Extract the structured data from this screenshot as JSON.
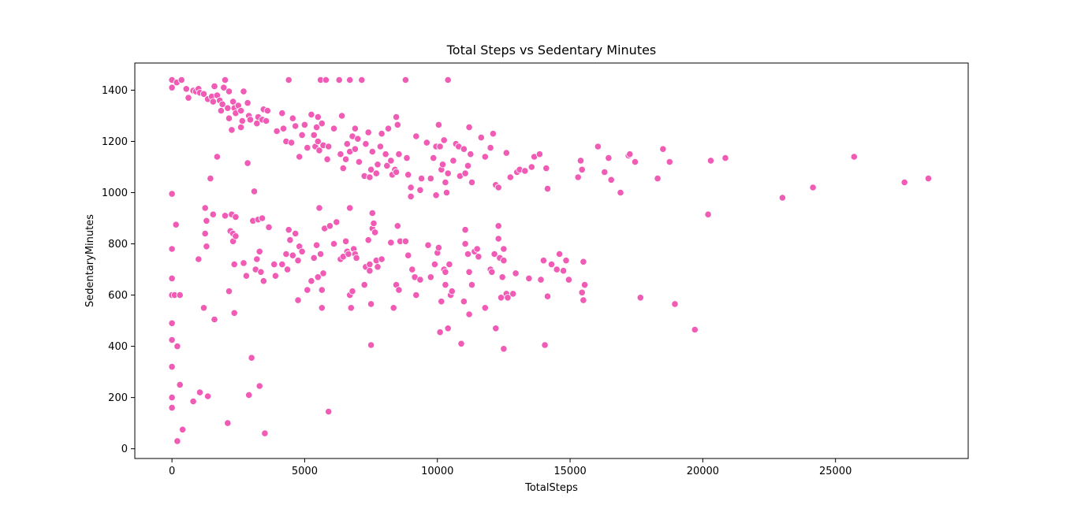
{
  "chart_data": {
    "type": "scatter",
    "title": "Total Steps vs Sedentary Minutes",
    "xlabel": "TotalSteps",
    "ylabel": "SedentaryMinutes",
    "xlim": [
      -1400,
      30000
    ],
    "ylim": [
      -38,
      1506
    ],
    "xticks": [
      0,
      5000,
      10000,
      15000,
      20000,
      25000
    ],
    "xtick_labels": [
      "0",
      "5000",
      "10000",
      "15000",
      "20000",
      "25000"
    ],
    "yticks": [
      0,
      200,
      400,
      600,
      800,
      1000,
      1200,
      1400
    ],
    "ytick_labels": [
      "0",
      "200",
      "400",
      "600",
      "800",
      "1000",
      "1200",
      "1400"
    ],
    "grid": false,
    "marker_color": "#f05bb5",
    "marker_edge": "#ffffff",
    "points": [
      [
        0,
        1440
      ],
      [
        0,
        1410
      ],
      [
        180,
        1430
      ],
      [
        360,
        1440
      ],
      [
        540,
        1405
      ],
      [
        620,
        1370
      ],
      [
        800,
        1398
      ],
      [
        900,
        1395
      ],
      [
        1000,
        1405
      ],
      [
        1050,
        1390
      ],
      [
        1200,
        1385
      ],
      [
        1350,
        1365
      ],
      [
        1500,
        1375
      ],
      [
        1550,
        1355
      ],
      [
        1600,
        1415
      ],
      [
        1700,
        1380
      ],
      [
        1800,
        1360
      ],
      [
        1850,
        1320
      ],
      [
        1900,
        1345
      ],
      [
        1950,
        1410
      ],
      [
        2000,
        1440
      ],
      [
        2100,
        1330
      ],
      [
        2150,
        1395
      ],
      [
        2150,
        1290
      ],
      [
        2250,
        1245
      ],
      [
        2300,
        1355
      ],
      [
        2350,
        1330
      ],
      [
        2400,
        1310
      ],
      [
        2500,
        1340
      ],
      [
        2600,
        1320
      ],
      [
        2600,
        1255
      ],
      [
        2650,
        1280
      ],
      [
        2700,
        1395
      ],
      [
        2850,
        1350
      ],
      [
        2900,
        1300
      ],
      [
        2950,
        1285
      ],
      [
        3200,
        1270
      ],
      [
        3250,
        1295
      ],
      [
        3400,
        1285
      ],
      [
        3450,
        1325
      ],
      [
        3550,
        1280
      ],
      [
        3600,
        1320
      ],
      [
        3950,
        1240
      ],
      [
        4150,
        1310
      ],
      [
        4200,
        1250
      ],
      [
        4300,
        1200
      ],
      [
        4400,
        1440
      ],
      [
        4500,
        1195
      ],
      [
        4550,
        1290
      ],
      [
        4650,
        1260
      ],
      [
        4800,
        1140
      ],
      [
        4900,
        1225
      ],
      [
        5000,
        1265
      ],
      [
        5100,
        1175
      ],
      [
        5250,
        1305
      ],
      [
        5350,
        1225
      ],
      [
        5400,
        1180
      ],
      [
        5450,
        1255
      ],
      [
        5500,
        1295
      ],
      [
        5500,
        1200
      ],
      [
        5550,
        1165
      ],
      [
        5600,
        1440
      ],
      [
        5650,
        1270
      ],
      [
        5700,
        1185
      ],
      [
        5800,
        1440
      ],
      [
        5850,
        1130
      ],
      [
        5900,
        1180
      ],
      [
        6100,
        1250
      ],
      [
        6300,
        1440
      ],
      [
        6350,
        1150
      ],
      [
        6400,
        1300
      ],
      [
        6450,
        1095
      ],
      [
        6550,
        1130
      ],
      [
        6600,
        1190
      ],
      [
        6700,
        1440
      ],
      [
        6700,
        1160
      ],
      [
        6800,
        1220
      ],
      [
        6900,
        1250
      ],
      [
        6900,
        1170
      ],
      [
        7000,
        1210
      ],
      [
        7050,
        1120
      ],
      [
        7150,
        1440
      ],
      [
        7250,
        1065
      ],
      [
        7300,
        1190
      ],
      [
        7400,
        1235
      ],
      [
        7450,
        1060
      ],
      [
        7500,
        1090
      ],
      [
        7550,
        1160
      ],
      [
        7700,
        1075
      ],
      [
        7750,
        1110
      ],
      [
        7850,
        1180
      ],
      [
        7900,
        1230
      ],
      [
        8050,
        1150
      ],
      [
        8100,
        1105
      ],
      [
        8150,
        1250
      ],
      [
        8250,
        1125
      ],
      [
        8300,
        1070
      ],
      [
        8400,
        1090
      ],
      [
        8450,
        1080
      ],
      [
        8450,
        1295
      ],
      [
        8500,
        1265
      ],
      [
        8550,
        1150
      ],
      [
        8800,
        1440
      ],
      [
        8850,
        1135
      ],
      [
        8900,
        1070
      ],
      [
        9000,
        1020
      ],
      [
        9000,
        985
      ],
      [
        9200,
        1220
      ],
      [
        9350,
        1010
      ],
      [
        9400,
        1055
      ],
      [
        9600,
        1195
      ],
      [
        9750,
        1055
      ],
      [
        9850,
        1135
      ],
      [
        9950,
        1180
      ],
      [
        9950,
        990
      ],
      [
        10050,
        1265
      ],
      [
        10100,
        1180
      ],
      [
        10150,
        1090
      ],
      [
        10200,
        1110
      ],
      [
        10250,
        1205
      ],
      [
        10300,
        1040
      ],
      [
        10350,
        1000
      ],
      [
        10400,
        1440
      ],
      [
        10400,
        1075
      ],
      [
        10600,
        1125
      ],
      [
        10700,
        1190
      ],
      [
        10800,
        1180
      ],
      [
        10850,
        1065
      ],
      [
        11000,
        1170
      ],
      [
        11050,
        1075
      ],
      [
        11150,
        1105
      ],
      [
        11200,
        1255
      ],
      [
        11250,
        1150
      ],
      [
        11300,
        1040
      ],
      [
        11650,
        1215
      ],
      [
        11800,
        1140
      ],
      [
        12000,
        1175
      ],
      [
        12100,
        1230
      ],
      [
        12200,
        1030
      ],
      [
        12300,
        1020
      ],
      [
        12600,
        1155
      ],
      [
        12750,
        1060
      ],
      [
        13000,
        1080
      ],
      [
        13100,
        1090
      ],
      [
        13300,
        1085
      ],
      [
        13550,
        1100
      ],
      [
        13650,
        1140
      ],
      [
        13850,
        1150
      ],
      [
        14100,
        1095
      ],
      [
        14150,
        1015
      ],
      [
        15300,
        1060
      ],
      [
        15400,
        1125
      ],
      [
        15450,
        1090
      ],
      [
        16050,
        1180
      ],
      [
        16300,
        1080
      ],
      [
        16450,
        1135
      ],
      [
        16550,
        1050
      ],
      [
        16900,
        1000
      ],
      [
        17200,
        1145
      ],
      [
        17250,
        1150
      ],
      [
        17450,
        1120
      ],
      [
        18300,
        1055
      ],
      [
        18500,
        1170
      ],
      [
        18750,
        1120
      ],
      [
        20300,
        1125
      ],
      [
        20850,
        1135
      ],
      [
        25700,
        1140
      ],
      [
        28500,
        1055
      ],
      [
        27600,
        1040
      ],
      [
        0,
        995
      ],
      [
        0,
        780
      ],
      [
        0,
        665
      ],
      [
        0,
        600
      ],
      [
        100,
        600
      ],
      [
        200,
        400
      ],
      [
        300,
        600
      ],
      [
        300,
        250
      ],
      [
        400,
        75
      ],
      [
        0,
        490
      ],
      [
        0,
        425
      ],
      [
        0,
        320
      ],
      [
        0,
        200
      ],
      [
        0,
        160
      ],
      [
        200,
        30
      ],
      [
        150,
        875
      ],
      [
        800,
        185
      ],
      [
        1000,
        740
      ],
      [
        1050,
        220
      ],
      [
        1200,
        550
      ],
      [
        1250,
        840
      ],
      [
        1250,
        940
      ],
      [
        1300,
        890
      ],
      [
        1300,
        790
      ],
      [
        1350,
        205
      ],
      [
        1450,
        1055
      ],
      [
        1550,
        915
      ],
      [
        1600,
        505
      ],
      [
        1700,
        1140
      ],
      [
        2000,
        910
      ],
      [
        2100,
        100
      ],
      [
        2150,
        615
      ],
      [
        2200,
        850
      ],
      [
        2250,
        915
      ],
      [
        2300,
        840
      ],
      [
        2300,
        810
      ],
      [
        2350,
        720
      ],
      [
        2350,
        530
      ],
      [
        2400,
        905
      ],
      [
        2400,
        830
      ],
      [
        2700,
        725
      ],
      [
        2800,
        675
      ],
      [
        2850,
        1115
      ],
      [
        2900,
        210
      ],
      [
        3000,
        355
      ],
      [
        3050,
        890
      ],
      [
        3100,
        1005
      ],
      [
        3150,
        700
      ],
      [
        3200,
        740
      ],
      [
        3250,
        895
      ],
      [
        3300,
        770
      ],
      [
        3300,
        245
      ],
      [
        3350,
        690
      ],
      [
        3400,
        900
      ],
      [
        3450,
        655
      ],
      [
        3500,
        60
      ],
      [
        3650,
        865
      ],
      [
        3850,
        720
      ],
      [
        3900,
        675
      ],
      [
        4150,
        720
      ],
      [
        4300,
        760
      ],
      [
        4350,
        700
      ],
      [
        4400,
        855
      ],
      [
        4450,
        815
      ],
      [
        4550,
        755
      ],
      [
        4650,
        840
      ],
      [
        4750,
        580
      ],
      [
        4750,
        735
      ],
      [
        4800,
        790
      ],
      [
        4900,
        770
      ],
      [
        5100,
        620
      ],
      [
        5250,
        655
      ],
      [
        5350,
        745
      ],
      [
        5450,
        795
      ],
      [
        5500,
        670
      ],
      [
        5550,
        940
      ],
      [
        5600,
        760
      ],
      [
        5650,
        550
      ],
      [
        5650,
        620
      ],
      [
        5700,
        685
      ],
      [
        5750,
        860
      ],
      [
        5900,
        145
      ],
      [
        5950,
        870
      ],
      [
        6100,
        800
      ],
      [
        6200,
        885
      ],
      [
        6350,
        740
      ],
      [
        6450,
        750
      ],
      [
        6550,
        810
      ],
      [
        6600,
        770
      ],
      [
        6650,
        760
      ],
      [
        6700,
        940
      ],
      [
        6700,
        600
      ],
      [
        6750,
        550
      ],
      [
        6800,
        615
      ],
      [
        6850,
        780
      ],
      [
        6900,
        760
      ],
      [
        6950,
        745
      ],
      [
        7250,
        640
      ],
      [
        7300,
        710
      ],
      [
        7400,
        815
      ],
      [
        7450,
        720
      ],
      [
        7450,
        695
      ],
      [
        7500,
        405
      ],
      [
        7500,
        565
      ],
      [
        7550,
        920
      ],
      [
        7550,
        860
      ],
      [
        7600,
        880
      ],
      [
        7650,
        845
      ],
      [
        7700,
        735
      ],
      [
        7750,
        710
      ],
      [
        7900,
        740
      ],
      [
        8250,
        805
      ],
      [
        8350,
        550
      ],
      [
        8450,
        640
      ],
      [
        8500,
        870
      ],
      [
        8550,
        620
      ],
      [
        8600,
        810
      ],
      [
        8800,
        810
      ],
      [
        8900,
        755
      ],
      [
        9050,
        700
      ],
      [
        9150,
        670
      ],
      [
        9200,
        600
      ],
      [
        9350,
        660
      ],
      [
        9650,
        795
      ],
      [
        9750,
        670
      ],
      [
        9900,
        720
      ],
      [
        10000,
        765
      ],
      [
        10050,
        785
      ],
      [
        10100,
        455
      ],
      [
        10150,
        575
      ],
      [
        10250,
        700
      ],
      [
        10300,
        690
      ],
      [
        10300,
        640
      ],
      [
        10400,
        470
      ],
      [
        10450,
        720
      ],
      [
        10500,
        600
      ],
      [
        10550,
        615
      ],
      [
        10900,
        410
      ],
      [
        11000,
        575
      ],
      [
        11050,
        855
      ],
      [
        11050,
        800
      ],
      [
        11150,
        760
      ],
      [
        11200,
        690
      ],
      [
        11200,
        525
      ],
      [
        11300,
        640
      ],
      [
        11400,
        770
      ],
      [
        11500,
        780
      ],
      [
        11550,
        750
      ],
      [
        11800,
        550
      ],
      [
        12000,
        700
      ],
      [
        12050,
        690
      ],
      [
        12150,
        760
      ],
      [
        12200,
        470
      ],
      [
        12300,
        870
      ],
      [
        12300,
        820
      ],
      [
        12350,
        745
      ],
      [
        12400,
        590
      ],
      [
        12450,
        670
      ],
      [
        12500,
        780
      ],
      [
        12500,
        735
      ],
      [
        12500,
        390
      ],
      [
        12600,
        605
      ],
      [
        12650,
        590
      ],
      [
        12850,
        605
      ],
      [
        12950,
        685
      ],
      [
        13450,
        665
      ],
      [
        13900,
        660
      ],
      [
        14000,
        735
      ],
      [
        14050,
        405
      ],
      [
        14150,
        595
      ],
      [
        14300,
        720
      ],
      [
        14500,
        700
      ],
      [
        14600,
        760
      ],
      [
        14750,
        695
      ],
      [
        14850,
        735
      ],
      [
        14950,
        660
      ],
      [
        15450,
        610
      ],
      [
        15500,
        730
      ],
      [
        15550,
        640
      ],
      [
        15500,
        580
      ],
      [
        17650,
        590
      ],
      [
        18950,
        565
      ],
      [
        19700,
        465
      ],
      [
        20200,
        915
      ],
      [
        23000,
        980
      ],
      [
        24150,
        1020
      ]
    ]
  }
}
